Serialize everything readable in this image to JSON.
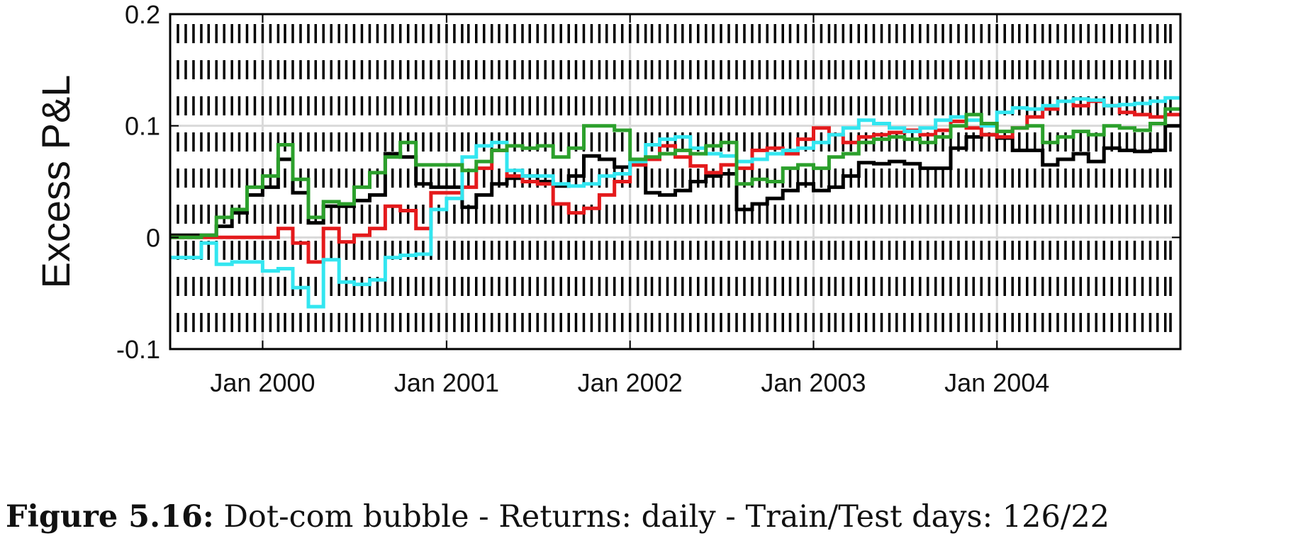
{
  "caption": {
    "label": "Figure 5.16:",
    "text": "Dot-com bubble - Returns: daily - Train/Test days: 126/22"
  },
  "chart_data": {
    "type": "line",
    "title": "",
    "xlabel": "",
    "ylabel": "Excess P&L",
    "xlim": [
      "1999-07-01",
      "2004-12-31"
    ],
    "ylim": [
      -0.1,
      0.2
    ],
    "yticks": [
      -0.1,
      0,
      0.1,
      0.2
    ],
    "ytick_labels": [
      "-0.1",
      "0",
      "0.1",
      "0.2"
    ],
    "xticks": [
      "2000-01-01",
      "2001-01-01",
      "2002-01-01",
      "2003-01-01",
      "2004-01-01"
    ],
    "xtick_labels": [
      "Jan 2000",
      "Jan 2001",
      "Jan 2002",
      "Jan 2003",
      "Jan 2004"
    ],
    "grid": true,
    "step": true,
    "rebalance_markers": "vertical dashed lines at every step",
    "x": [
      "1999-07-01",
      "1999-08-01",
      "1999-09-01",
      "1999-10-01",
      "1999-11-01",
      "1999-12-01",
      "2000-01-01",
      "2000-02-01",
      "2000-03-01",
      "2000-04-01",
      "2000-05-01",
      "2000-06-01",
      "2000-07-01",
      "2000-08-01",
      "2000-09-01",
      "2000-10-01",
      "2000-11-01",
      "2000-12-01",
      "2001-01-01",
      "2001-02-01",
      "2001-03-01",
      "2001-04-01",
      "2001-05-01",
      "2001-06-01",
      "2001-07-01",
      "2001-08-01",
      "2001-09-01",
      "2001-10-01",
      "2001-11-01",
      "2001-12-01",
      "2002-01-01",
      "2002-02-01",
      "2002-03-01",
      "2002-04-01",
      "2002-05-01",
      "2002-06-01",
      "2002-07-01",
      "2002-08-01",
      "2002-09-01",
      "2002-10-01",
      "2002-11-01",
      "2002-12-01",
      "2003-01-01",
      "2003-02-01",
      "2003-03-01",
      "2003-04-01",
      "2003-05-01",
      "2003-06-01",
      "2003-07-01",
      "2003-08-01",
      "2003-09-01",
      "2003-10-01",
      "2003-11-01",
      "2003-12-01",
      "2004-01-01",
      "2004-02-01",
      "2004-03-01",
      "2004-04-01",
      "2004-05-01",
      "2004-06-01",
      "2004-07-01",
      "2004-08-01",
      "2004-09-01",
      "2004-10-01",
      "2004-11-01",
      "2004-12-01"
    ],
    "series": [
      {
        "color": "#000000",
        "values": [
          0.002,
          0.002,
          0.002,
          0.01,
          0.022,
          0.038,
          0.045,
          0.07,
          0.04,
          0.013,
          0.028,
          0.028,
          0.033,
          0.038,
          0.075,
          0.072,
          0.048,
          0.045,
          0.045,
          0.027,
          0.038,
          0.048,
          0.053,
          0.055,
          0.05,
          0.046,
          0.055,
          0.073,
          0.07,
          0.063,
          0.065,
          0.04,
          0.038,
          0.042,
          0.05,
          0.055,
          0.057,
          0.025,
          0.03,
          0.035,
          0.042,
          0.048,
          0.042,
          0.045,
          0.055,
          0.067,
          0.066,
          0.068,
          0.066,
          0.062,
          0.062,
          0.08,
          0.09,
          0.092,
          0.089,
          0.078,
          0.078,
          0.065,
          0.07,
          0.075,
          0.068,
          0.08,
          0.078,
          0.077,
          0.078,
          0.1
        ]
      },
      {
        "color": "#e41a1c",
        "values": [
          0.0,
          0.0,
          0.0,
          0.0,
          0.0,
          0.0,
          0.0,
          0.008,
          -0.005,
          -0.022,
          0.008,
          -0.004,
          0.002,
          0.008,
          0.028,
          0.024,
          0.008,
          0.04,
          0.04,
          0.045,
          0.062,
          0.078,
          0.055,
          0.05,
          0.048,
          0.03,
          0.022,
          0.026,
          0.038,
          0.05,
          0.065,
          0.07,
          0.082,
          0.072,
          0.064,
          0.058,
          0.065,
          0.062,
          0.078,
          0.08,
          0.075,
          0.088,
          0.098,
          0.092,
          0.085,
          0.09,
          0.092,
          0.094,
          0.096,
          0.092,
          0.096,
          0.104,
          0.098,
          0.092,
          0.09,
          0.098,
          0.108,
          0.115,
          0.122,
          0.118,
          0.122,
          0.118,
          0.112,
          0.11,
          0.108,
          0.11
        ]
      },
      {
        "color": "#33e6f0",
        "values": [
          -0.018,
          -0.018,
          -0.005,
          -0.024,
          -0.022,
          -0.022,
          -0.03,
          -0.028,
          -0.045,
          -0.062,
          -0.02,
          -0.04,
          -0.042,
          -0.038,
          -0.018,
          -0.016,
          -0.015,
          0.025,
          0.035,
          0.072,
          0.082,
          0.085,
          0.06,
          0.055,
          0.055,
          0.048,
          0.046,
          0.048,
          0.055,
          0.057,
          0.068,
          0.083,
          0.088,
          0.09,
          0.08,
          0.075,
          0.073,
          0.068,
          0.07,
          0.075,
          0.078,
          0.08,
          0.085,
          0.092,
          0.098,
          0.105,
          0.102,
          0.098,
          0.095,
          0.098,
          0.105,
          0.108,
          0.105,
          0.1,
          0.112,
          0.116,
          0.115,
          0.118,
          0.122,
          0.124,
          0.123,
          0.118,
          0.119,
          0.12,
          0.122,
          0.125
        ]
      },
      {
        "color": "#2ca02c",
        "values": [
          0.0,
          0.0,
          0.002,
          0.018,
          0.025,
          0.045,
          0.055,
          0.083,
          0.052,
          0.018,
          0.032,
          0.03,
          0.045,
          0.058,
          0.072,
          0.085,
          0.065,
          0.065,
          0.065,
          0.06,
          0.068,
          0.078,
          0.082,
          0.08,
          0.082,
          0.072,
          0.08,
          0.1,
          0.1,
          0.096,
          0.07,
          0.072,
          0.075,
          0.078,
          0.075,
          0.082,
          0.085,
          0.048,
          0.052,
          0.05,
          0.062,
          0.065,
          0.062,
          0.072,
          0.075,
          0.085,
          0.088,
          0.09,
          0.088,
          0.085,
          0.09,
          0.1,
          0.11,
          0.102,
          0.095,
          0.098,
          0.1,
          0.085,
          0.09,
          0.095,
          0.092,
          0.1,
          0.098,
          0.096,
          0.102,
          0.115
        ]
      }
    ]
  }
}
